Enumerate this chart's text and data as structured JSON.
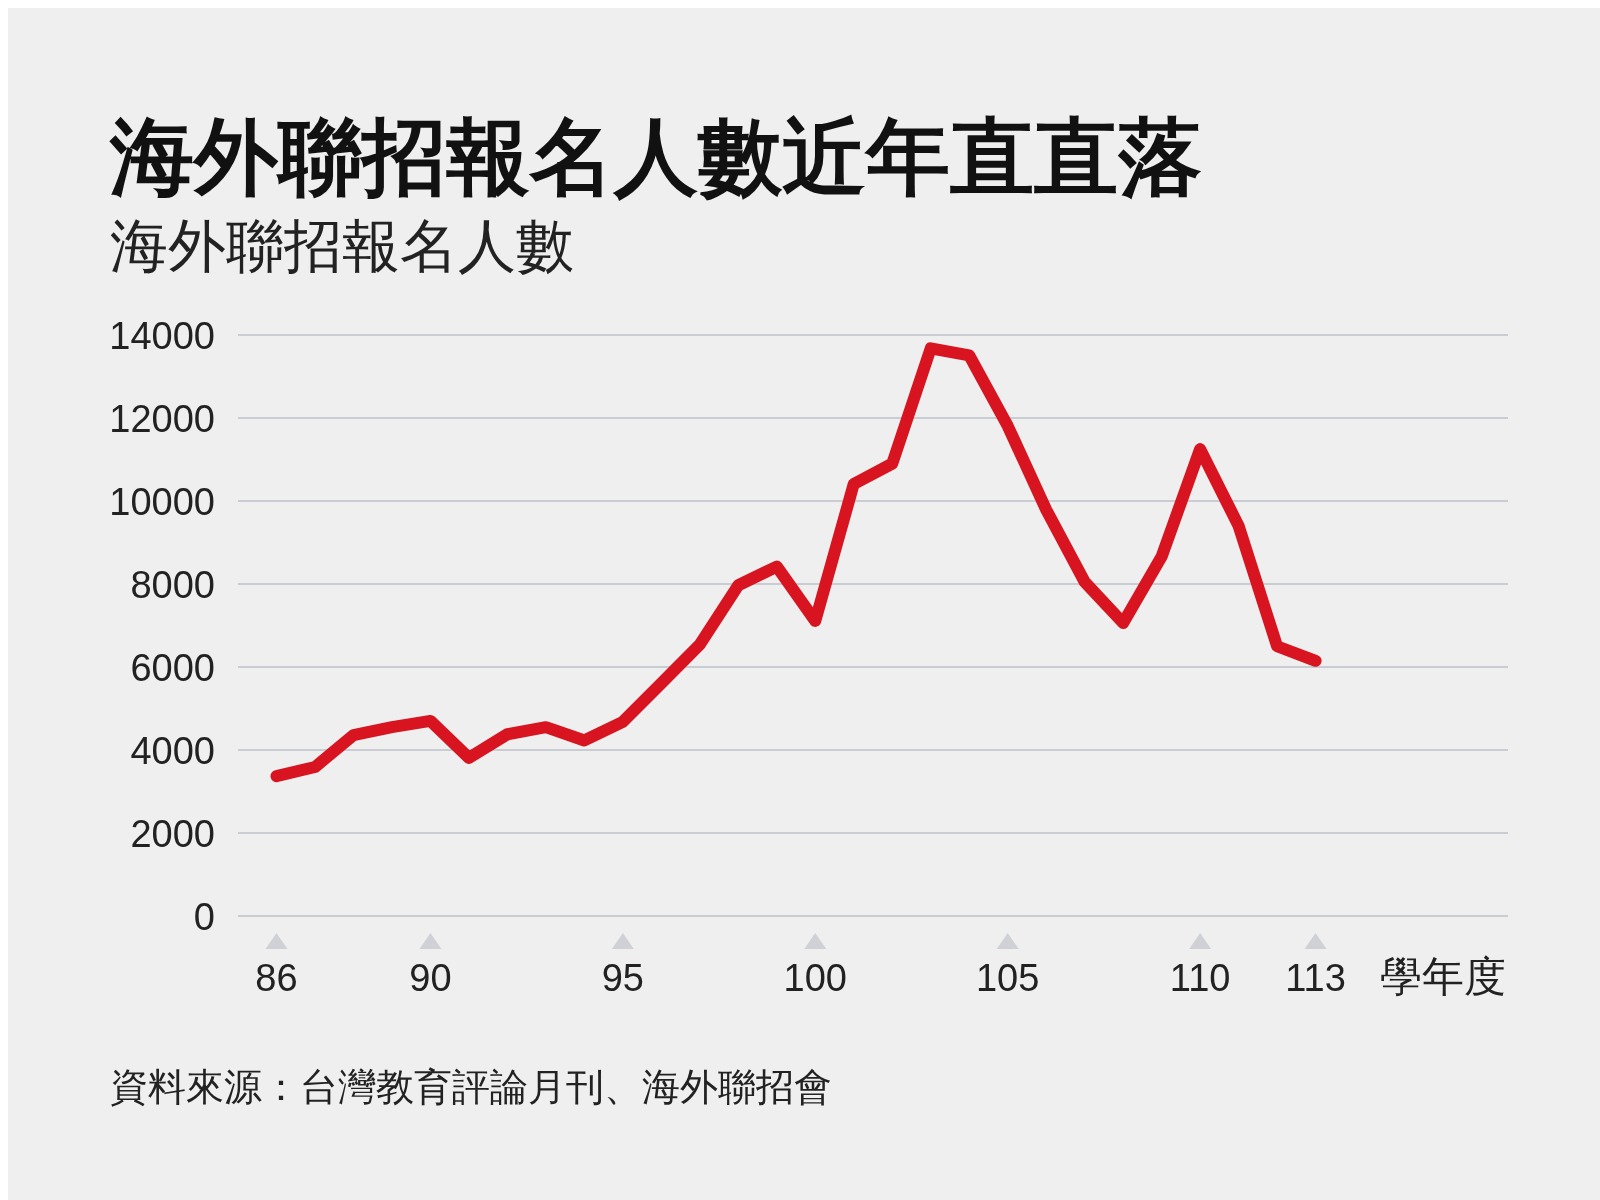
{
  "chart_data": {
    "type": "line",
    "title": "海外聯招報名人數近年直直落",
    "subtitle": "海外聯招報名人數",
    "xlabel": "學年度",
    "annotations": [
      "資料來源：台灣教育評論月刊、海外聯招會"
    ],
    "x": [
      86,
      87,
      88,
      89,
      90,
      91,
      92,
      93,
      94,
      95,
      96,
      97,
      98,
      99,
      100,
      101,
      102,
      103,
      104,
      105,
      106,
      107,
      108,
      109,
      110,
      111,
      112,
      113
    ],
    "series": [
      {
        "color": "#d7141f",
        "values": [
          3370,
          3590,
          4360,
          4550,
          4700,
          3810,
          4380,
          4550,
          4230,
          4680,
          5610,
          6540,
          7970,
          8420,
          7110,
          10410,
          10900,
          13680,
          13510,
          11810,
          9790,
          8050,
          7060,
          8660,
          11250,
          9400,
          6500,
          6150
        ]
      }
    ],
    "xlim": [
      85,
      118
    ],
    "xticks": [
      86,
      90,
      95,
      100,
      105,
      110,
      113
    ],
    "ylim": [
      0,
      14000
    ],
    "yticks": [
      0,
      2000,
      4000,
      6000,
      8000,
      10000,
      12000,
      14000
    ],
    "grid": "y",
    "marker": "none",
    "line_style": "solid"
  }
}
